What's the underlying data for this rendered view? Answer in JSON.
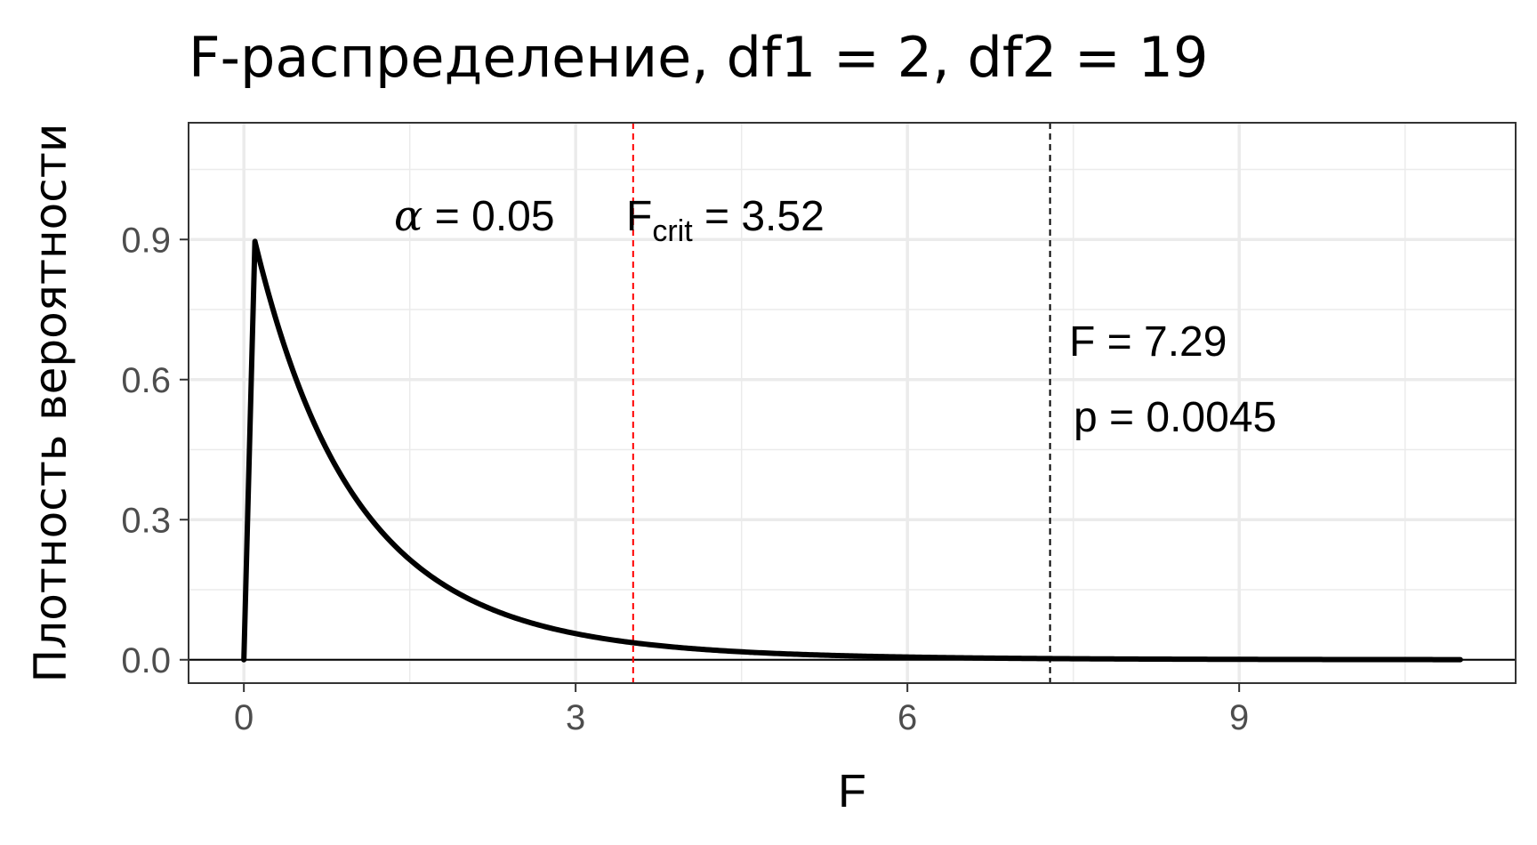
{
  "chart_data": {
    "type": "line",
    "title": "F-распределение, df1 = 2, df2 = 19",
    "xlabel": "F",
    "ylabel": "Плотность вероятности",
    "xlim": [
      -0.5,
      11.5
    ],
    "ylim": [
      -0.05,
      1.15
    ],
    "x_ticks": [
      0,
      3,
      6,
      9
    ],
    "x_tick_labels": [
      "0",
      "3",
      "6",
      "9"
    ],
    "y_ticks": [
      0.0,
      0.3,
      0.6,
      0.9
    ],
    "y_tick_labels": [
      "0.0",
      "0.3",
      "0.6",
      "0.9"
    ],
    "grid": true,
    "df1": 2,
    "df2": 19,
    "x_max_curve": 11,
    "series": [
      {
        "color": "#000000",
        "x": [
          0,
          0.1,
          0.25,
          0.5,
          0.75,
          1.0,
          1.25,
          1.5,
          1.75,
          2.0,
          2.25,
          2.5,
          2.75,
          3.0,
          3.5,
          4.0,
          4.5,
          5.0,
          5.5,
          6.0,
          6.5,
          7.0,
          7.5,
          8.0,
          8.5,
          9.0,
          9.5,
          10.0,
          10.5,
          11.0
        ],
        "y": [
          0,
          0.896,
          0.787,
          0.628,
          0.502,
          0.402,
          0.323,
          0.26,
          0.21,
          0.17,
          0.138,
          0.113,
          0.092,
          0.075,
          0.051,
          0.035,
          0.024,
          0.017,
          0.012,
          0.0084,
          0.006,
          0.0043,
          0.0031,
          0.0023,
          0.0017,
          0.0012,
          0.0009,
          0.0007,
          0.0005,
          0.0004
        ]
      }
    ],
    "vlines": [
      {
        "x": 3.52,
        "color": "#ff0000",
        "style": "dashed"
      },
      {
        "x": 7.29,
        "color": "#000000",
        "style": "dashed"
      }
    ],
    "hline": {
      "y": 0,
      "color": "#000000"
    },
    "annotations": {
      "alpha_symbol": "α",
      "alpha_value": " = 0.05",
      "fcrit_base": "F",
      "fcrit_sub": "crit",
      "fcrit_value": " = 3.52",
      "f_stat": "F = 7.29",
      "p_value": "p = 0.0045"
    }
  }
}
